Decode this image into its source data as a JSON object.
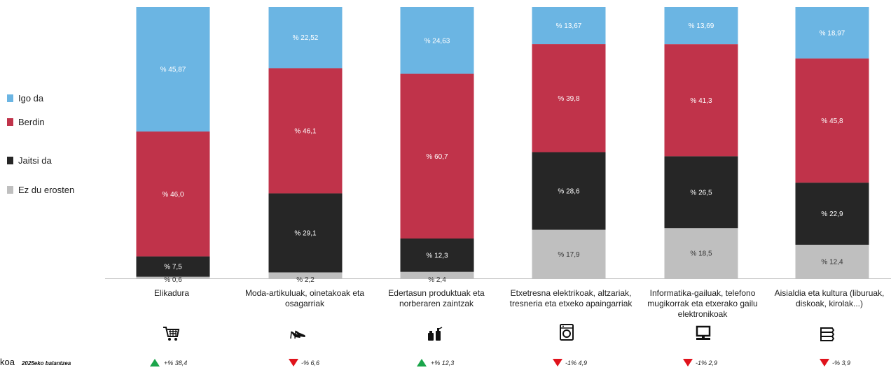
{
  "chart_data": {
    "type": "bar",
    "stacked": true,
    "categories": [
      "Elikadura",
      "Moda-artikuluak, oinetakoak eta osagarriak",
      "Edertasun produktuak eta norberaren zaintzak",
      "Etxetresna elektrikoak, altzariak, tresneria eta etxeko apaingarriak",
      "Informatika-gailuak, telefono mugikorrak eta etxerako gailu elektronikoak",
      "Aisialdia eta kultura (liburuak, diskoak, kirolak...)"
    ],
    "series": [
      {
        "name": "Ez du erosten",
        "color": "#bfbfbf",
        "values": [
          0.6,
          2.2,
          2.4,
          17.9,
          18.5,
          12.4
        ],
        "labels": [
          "% 0,6",
          "% 2,2",
          "% 2,4",
          "% 17,9",
          "% 18,5",
          "% 12,4"
        ]
      },
      {
        "name": "Jaitsi da",
        "color": "#262626",
        "values": [
          7.5,
          29.1,
          12.3,
          28.6,
          26.5,
          22.9
        ],
        "labels": [
          "% 7,5",
          "% 29,1",
          "% 12,3",
          "% 28,6",
          "% 26,5",
          "% 22,9"
        ]
      },
      {
        "name": "Berdin",
        "color": "#c0334a",
        "values": [
          46.0,
          46.1,
          60.7,
          39.8,
          41.3,
          45.8
        ],
        "labels": [
          "% 46,0",
          "% 46,1",
          "% 60,7",
          "% 39,8",
          "% 41,3",
          "% 45,8"
        ]
      },
      {
        "name": "Igo da",
        "color": "#6bb5e3",
        "values": [
          45.87,
          22.52,
          24.63,
          13.67,
          13.69,
          18.97
        ],
        "labels": [
          "% 45,87",
          "% 22,52",
          "% 24,63",
          "% 13,67",
          "% 13,69",
          "% 18,97"
        ]
      }
    ],
    "legend_order": [
      "Igo da",
      "Berdin",
      "Jaitsi da",
      "Ez du erosten"
    ],
    "legend_position": "left",
    "ylim": [
      0,
      100
    ],
    "grid": false
  },
  "category_labels": [
    "Elikadura",
    "Moda-artikuluak, oinetakoak eta osagarriak",
    "Edertasun produktuak eta norberaren zaintzak",
    "Etxetresna elektrikoak, altzariak, tresneria eta etxeko apaingarriak",
    "Informatika-gailuak, telefono mugikorrak eta etxerako gailu elektronikoak",
    "Aisialdia eta kultura (liburuak, diskoak, kirolak...)"
  ],
  "category_icons": [
    "shopping-cart-icon",
    "high-heel-shoe-icon",
    "cosmetics-icon",
    "washing-machine-icon",
    "computer-icon",
    "books-icon"
  ],
  "changes": [
    {
      "direction": "up",
      "text": "+% 38,4"
    },
    {
      "direction": "down",
      "text": "-% 6,6"
    },
    {
      "direction": "up",
      "text": "+% 12,3"
    },
    {
      "direction": "down",
      "text": "-1% 4,9"
    },
    {
      "direction": "down",
      "text": "-1% 2,9"
    },
    {
      "direction": "down",
      "text": "-% 3,9"
    }
  ],
  "footer": {
    "left_text": "koa",
    "note": "2025eko balantzea"
  },
  "colors": {
    "up": "#1aa54a",
    "down": "#e0131c",
    "axis": "#bfbfbf"
  }
}
